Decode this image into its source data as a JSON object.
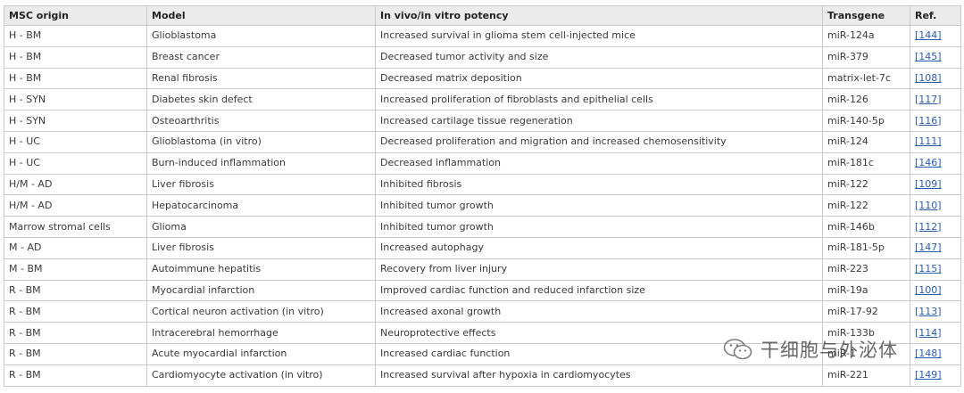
{
  "table": {
    "headers": {
      "origin": "MSC origin",
      "model": "Model",
      "potency": "In vivo/in vitro potency",
      "transgene": "Transgene",
      "ref": "Ref."
    },
    "rows": [
      {
        "origin": "H - BM",
        "model": "Glioblastoma",
        "potency": "Increased survival in glioma stem cell-injected mice",
        "transgene": "miR-124a",
        "ref": "[144]"
      },
      {
        "origin": "H - BM",
        "model": "Breast cancer",
        "potency": "Decreased tumor activity and size",
        "transgene": "miR-379",
        "ref": "[145]"
      },
      {
        "origin": "H - BM",
        "model": "Renal fibrosis",
        "potency": "Decreased matrix deposition",
        "transgene": "matrix-let-7c",
        "ref": "[108]"
      },
      {
        "origin": "H - SYN",
        "model": "Diabetes skin defect",
        "potency": "Increased proliferation of fibroblasts and epithelial cells",
        "transgene": "miR-126",
        "ref": "[117]"
      },
      {
        "origin": "H - SYN",
        "model": "Osteoarthritis",
        "potency": "Increased cartilage tissue regeneration",
        "transgene": "miR-140-5p",
        "ref": "[116]"
      },
      {
        "origin": "H - UC",
        "model": "Glioblastoma (in vitro)",
        "potency": "Decreased proliferation and migration and increased chemosensitivity",
        "transgene": "miR-124",
        "ref": "[111]"
      },
      {
        "origin": "H - UC",
        "model": "Burn-induced inflammation",
        "potency": "Decreased inflammation",
        "transgene": "miR-181c",
        "ref": "[146]"
      },
      {
        "origin": "H/M - AD",
        "model": "Liver fibrosis",
        "potency": "Inhibited fibrosis",
        "transgene": "miR-122",
        "ref": "[109]"
      },
      {
        "origin": "H/M - AD",
        "model": "Hepatocarcinoma",
        "potency": "Inhibited tumor growth",
        "transgene": "miR-122",
        "ref": "[110]"
      },
      {
        "origin": "Marrow stromal cells",
        "model": "Glioma",
        "potency": "Inhibited tumor growth",
        "transgene": "miR-146b",
        "ref": "[112]"
      },
      {
        "origin": "M - AD",
        "model": "Liver fibrosis",
        "potency": "Increased autophagy",
        "transgene": "miR-181-5p",
        "ref": "[147]"
      },
      {
        "origin": "M - BM",
        "model": "Autoimmune hepatitis",
        "potency": "Recovery from liver injury",
        "transgene": "miR-223",
        "ref": "[115]"
      },
      {
        "origin": "R - BM",
        "model": "Myocardial infarction",
        "potency": "Improved cardiac function and reduced infarction size",
        "transgene": "miR-19a",
        "ref": "[100]"
      },
      {
        "origin": "R - BM",
        "model": "Cortical neuron activation (in vitro)",
        "potency": "Increased axonal growth",
        "transgene": "miR-17-92",
        "ref": "[113]"
      },
      {
        "origin": "R - BM",
        "model": "Intracerebral hemorrhage",
        "potency": "Neuroprotective effects",
        "transgene": "miR-133b",
        "ref": "[114]"
      },
      {
        "origin": "R - BM",
        "model": "Acute myocardial infarction",
        "potency": "Increased cardiac function",
        "transgene": "miR-1",
        "ref": "[148]"
      },
      {
        "origin": "R - BM",
        "model": "Cardiomyocyte activation (in vitro)",
        "potency": "Increased survival after hypoxia in cardiomyocytes",
        "transgene": "miR-221",
        "ref": "[149]"
      }
    ]
  },
  "watermark": {
    "icon": "wechat-icon",
    "text": "干细胞与外泌体"
  },
  "colors": {
    "header_bg": "#ebebeb",
    "border": "#c9c9c9",
    "link": "#2a5db0"
  }
}
